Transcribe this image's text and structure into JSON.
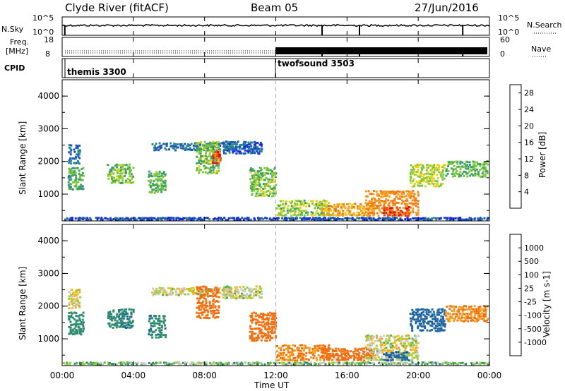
{
  "header": {
    "station": "Clyde River (fitACF)",
    "beam": "Beam 05",
    "date": "27/Jun/2016"
  },
  "panels": {
    "nsky": {
      "left_label": "N.Sky",
      "right_label": "N.Search",
      "right_legend_marker": "dotted",
      "y_ticks_left": [
        "10^5",
        "10^0"
      ],
      "y_ticks_right": [
        "10^5",
        "10^0"
      ]
    },
    "freq": {
      "left_label_line1": "Freq.",
      "left_label_line2": "[MHz]",
      "right_label": "Nave",
      "right_legend_marker": "dotted",
      "y_ticks_left": [
        "18",
        "8"
      ],
      "y_ticks_right": [
        "60",
        "0"
      ]
    },
    "cpid": {
      "label": "CPID",
      "modes": [
        {
          "name": "themis 3300",
          "start_hour": 0
        },
        {
          "name": "twofsound 3503",
          "start_hour": 12
        }
      ]
    }
  },
  "x_axis": {
    "label": "Time UT",
    "tick_labels": [
      "00:00",
      "04:00",
      "08:00",
      "12:00",
      "16:00",
      "20:00",
      "00:00"
    ],
    "range_hours": [
      0,
      24
    ]
  },
  "chart_data": [
    {
      "type": "heatmap",
      "ylabel": "Slant Range [km]",
      "y_ticks": [
        "1000",
        "2000",
        "3000",
        "4000"
      ],
      "ylim": [
        180,
        4500
      ],
      "xlim": [
        0,
        24
      ],
      "colorbar_label": "Power [dB]",
      "colorbar_ticks": [
        "4",
        "8",
        "12",
        "16",
        "20",
        "24",
        "28"
      ],
      "colorbar_range": [
        0,
        30
      ],
      "colorscale": [
        "#1a22e6",
        "#1a55b8",
        "#2e8a8a",
        "#3fa060",
        "#7cc83a",
        "#e6d21a",
        "#f0a01e",
        "#f07a10",
        "#ee4a10",
        "#e01010"
      ],
      "regions": [
        {
          "t0": 0.3,
          "t1": 1.0,
          "r0": 1900,
          "r1": 2500,
          "v": 6
        },
        {
          "t0": 0.3,
          "t1": 1.2,
          "r0": 1100,
          "r1": 1800,
          "v": 11
        },
        {
          "t0": 2.5,
          "t1": 4.0,
          "r0": 1300,
          "r1": 1900,
          "v": 13
        },
        {
          "t0": 4.8,
          "t1": 5.8,
          "r0": 1000,
          "r1": 1700,
          "v": 12
        },
        {
          "t0": 5.0,
          "t1": 9.5,
          "r0": 2300,
          "r1": 2550,
          "v": 6
        },
        {
          "t0": 7.5,
          "t1": 8.8,
          "r0": 1600,
          "r1": 2600,
          "v": 13
        },
        {
          "t0": 8.4,
          "t1": 8.9,
          "r0": 1900,
          "r1": 2300,
          "v": 26
        },
        {
          "t0": 9.0,
          "t1": 11.2,
          "r0": 2200,
          "r1": 2600,
          "v": 5
        },
        {
          "t0": 10.5,
          "t1": 12.0,
          "r0": 900,
          "r1": 1800,
          "v": 13
        },
        {
          "t0": 12.0,
          "t1": 15.0,
          "r0": 300,
          "r1": 800,
          "v": 14
        },
        {
          "t0": 14.5,
          "t1": 17.5,
          "r0": 300,
          "r1": 700,
          "v": 19
        },
        {
          "t0": 17.0,
          "t1": 20.0,
          "r0": 300,
          "r1": 1100,
          "v": 21
        },
        {
          "t0": 18.0,
          "t1": 19.5,
          "r0": 300,
          "r1": 600,
          "v": 28
        },
        {
          "t0": 19.5,
          "t1": 21.5,
          "r0": 1200,
          "r1": 1900,
          "v": 15
        },
        {
          "t0": 21.5,
          "t1": 23.9,
          "r0": 1500,
          "r1": 2000,
          "v": 12
        },
        {
          "t0": 0.0,
          "t1": 24.0,
          "r0": 180,
          "r1": 260,
          "v": 4
        }
      ]
    },
    {
      "type": "heatmap",
      "ylabel": "Slant Range [km]",
      "y_ticks": [
        "1000",
        "2000",
        "3000",
        "4000"
      ],
      "ylim": [
        180,
        4500
      ],
      "xlim": [
        0,
        24
      ],
      "colorbar_label": "Velocity [m s-1]",
      "colorbar_ticks": [
        "1000",
        "500",
        "100",
        "25",
        "-25",
        "-100",
        "-500",
        "-1000"
      ],
      "colorscale": [
        "#2a36b8",
        "#1f66a0",
        "#2e8a6e",
        "#4fb050",
        "#9ad040",
        "#c8c8c8",
        "#f0c020",
        "#f0a01e",
        "#f07010",
        "#e81010"
      ],
      "regions": [
        {
          "t0": 0.3,
          "t1": 1.0,
          "r0": 1900,
          "r1": 2500,
          "v": -30
        },
        {
          "t0": 0.3,
          "t1": 1.2,
          "r0": 1100,
          "r1": 1800,
          "v": 200
        },
        {
          "t0": 2.5,
          "t1": 4.0,
          "r0": 1300,
          "r1": 1900,
          "v": 250
        },
        {
          "t0": 4.8,
          "t1": 5.8,
          "r0": 1000,
          "r1": 1700,
          "v": 250
        },
        {
          "t0": 5.0,
          "t1": 9.5,
          "r0": 2300,
          "r1": 2550,
          "v": 0
        },
        {
          "t0": 7.5,
          "t1": 8.8,
          "r0": 1600,
          "r1": 2600,
          "v": -300
        },
        {
          "t0": 9.0,
          "t1": 11.2,
          "r0": 2200,
          "r1": 2600,
          "v": 0
        },
        {
          "t0": 10.5,
          "t1": 12.0,
          "r0": 900,
          "r1": 1800,
          "v": -300
        },
        {
          "t0": 12.0,
          "t1": 15.0,
          "r0": 300,
          "r1": 800,
          "v": -200
        },
        {
          "t0": 14.5,
          "t1": 17.5,
          "r0": 300,
          "r1": 700,
          "v": -300
        },
        {
          "t0": 17.0,
          "t1": 20.0,
          "r0": 300,
          "r1": 1100,
          "v": 0
        },
        {
          "t0": 18.0,
          "t1": 19.5,
          "r0": 300,
          "r1": 600,
          "v": 700
        },
        {
          "t0": 19.5,
          "t1": 21.5,
          "r0": 1200,
          "r1": 1900,
          "v": 600
        },
        {
          "t0": 21.5,
          "t1": 23.9,
          "r0": 1500,
          "r1": 2000,
          "v": -200
        },
        {
          "t0": 0.0,
          "t1": 24.0,
          "r0": 180,
          "r1": 260,
          "v": 60
        }
      ]
    }
  ]
}
